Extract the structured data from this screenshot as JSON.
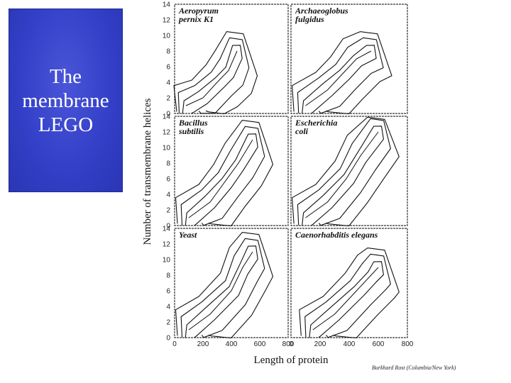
{
  "slide": {
    "title": "The\nmembrane\nLEGO",
    "credit": "Burkhard Rost (Columbia/New York)"
  },
  "chart_data": {
    "type": "contour",
    "xlabel": "Length of protein",
    "ylabel": "Number of transmembrane helices",
    "x_ticks": [
      0,
      200,
      400,
      600,
      800
    ],
    "y_ticks": [
      0,
      2,
      4,
      6,
      8,
      10,
      12,
      14
    ],
    "xlim": [
      0,
      800
    ],
    "ylim": [
      0,
      14
    ],
    "panels": [
      {
        "name": "Aeropyrum pernix K1",
        "lines": [
          "Aeropyrum",
          "pernix K1"
        ],
        "ridge": [
          [
            80,
            1
          ],
          [
            200,
            2
          ],
          [
            300,
            4
          ],
          [
            380,
            5.5
          ],
          [
            440,
            8
          ]
        ]
      },
      {
        "name": "Archaeoglobus fulgidus",
        "lines": [
          "Archaeoglobus",
          "fulgidus"
        ],
        "ridge": [
          [
            100,
            1
          ],
          [
            250,
            3
          ],
          [
            350,
            5
          ],
          [
            450,
            7
          ],
          [
            550,
            8
          ]
        ]
      },
      {
        "name": "Bacillus subtilis",
        "lines": [
          "Bacillus",
          "subtilis"
        ],
        "ridge": [
          [
            100,
            1
          ],
          [
            250,
            3
          ],
          [
            350,
            5.5
          ],
          [
            450,
            8
          ],
          [
            550,
            11
          ]
        ]
      },
      {
        "name": "Escherichia coli",
        "lines": [
          "Escherichia",
          "coli"
        ],
        "ridge": [
          [
            100,
            1
          ],
          [
            250,
            3
          ],
          [
            380,
            6
          ],
          [
            480,
            9
          ],
          [
            600,
            12
          ]
        ]
      },
      {
        "name": "Yeast",
        "lines": [
          "Yeast"
        ],
        "ridge": [
          [
            100,
            1
          ],
          [
            250,
            3
          ],
          [
            400,
            6
          ],
          [
            480,
            9
          ],
          [
            550,
            11
          ]
        ]
      },
      {
        "name": "Caenorhabditis elegans",
        "lines": [
          "Caenorhabditis elegans"
        ],
        "ridge": [
          [
            150,
            1
          ],
          [
            300,
            3
          ],
          [
            450,
            6
          ],
          [
            550,
            8
          ],
          [
            600,
            9
          ]
        ]
      }
    ]
  }
}
